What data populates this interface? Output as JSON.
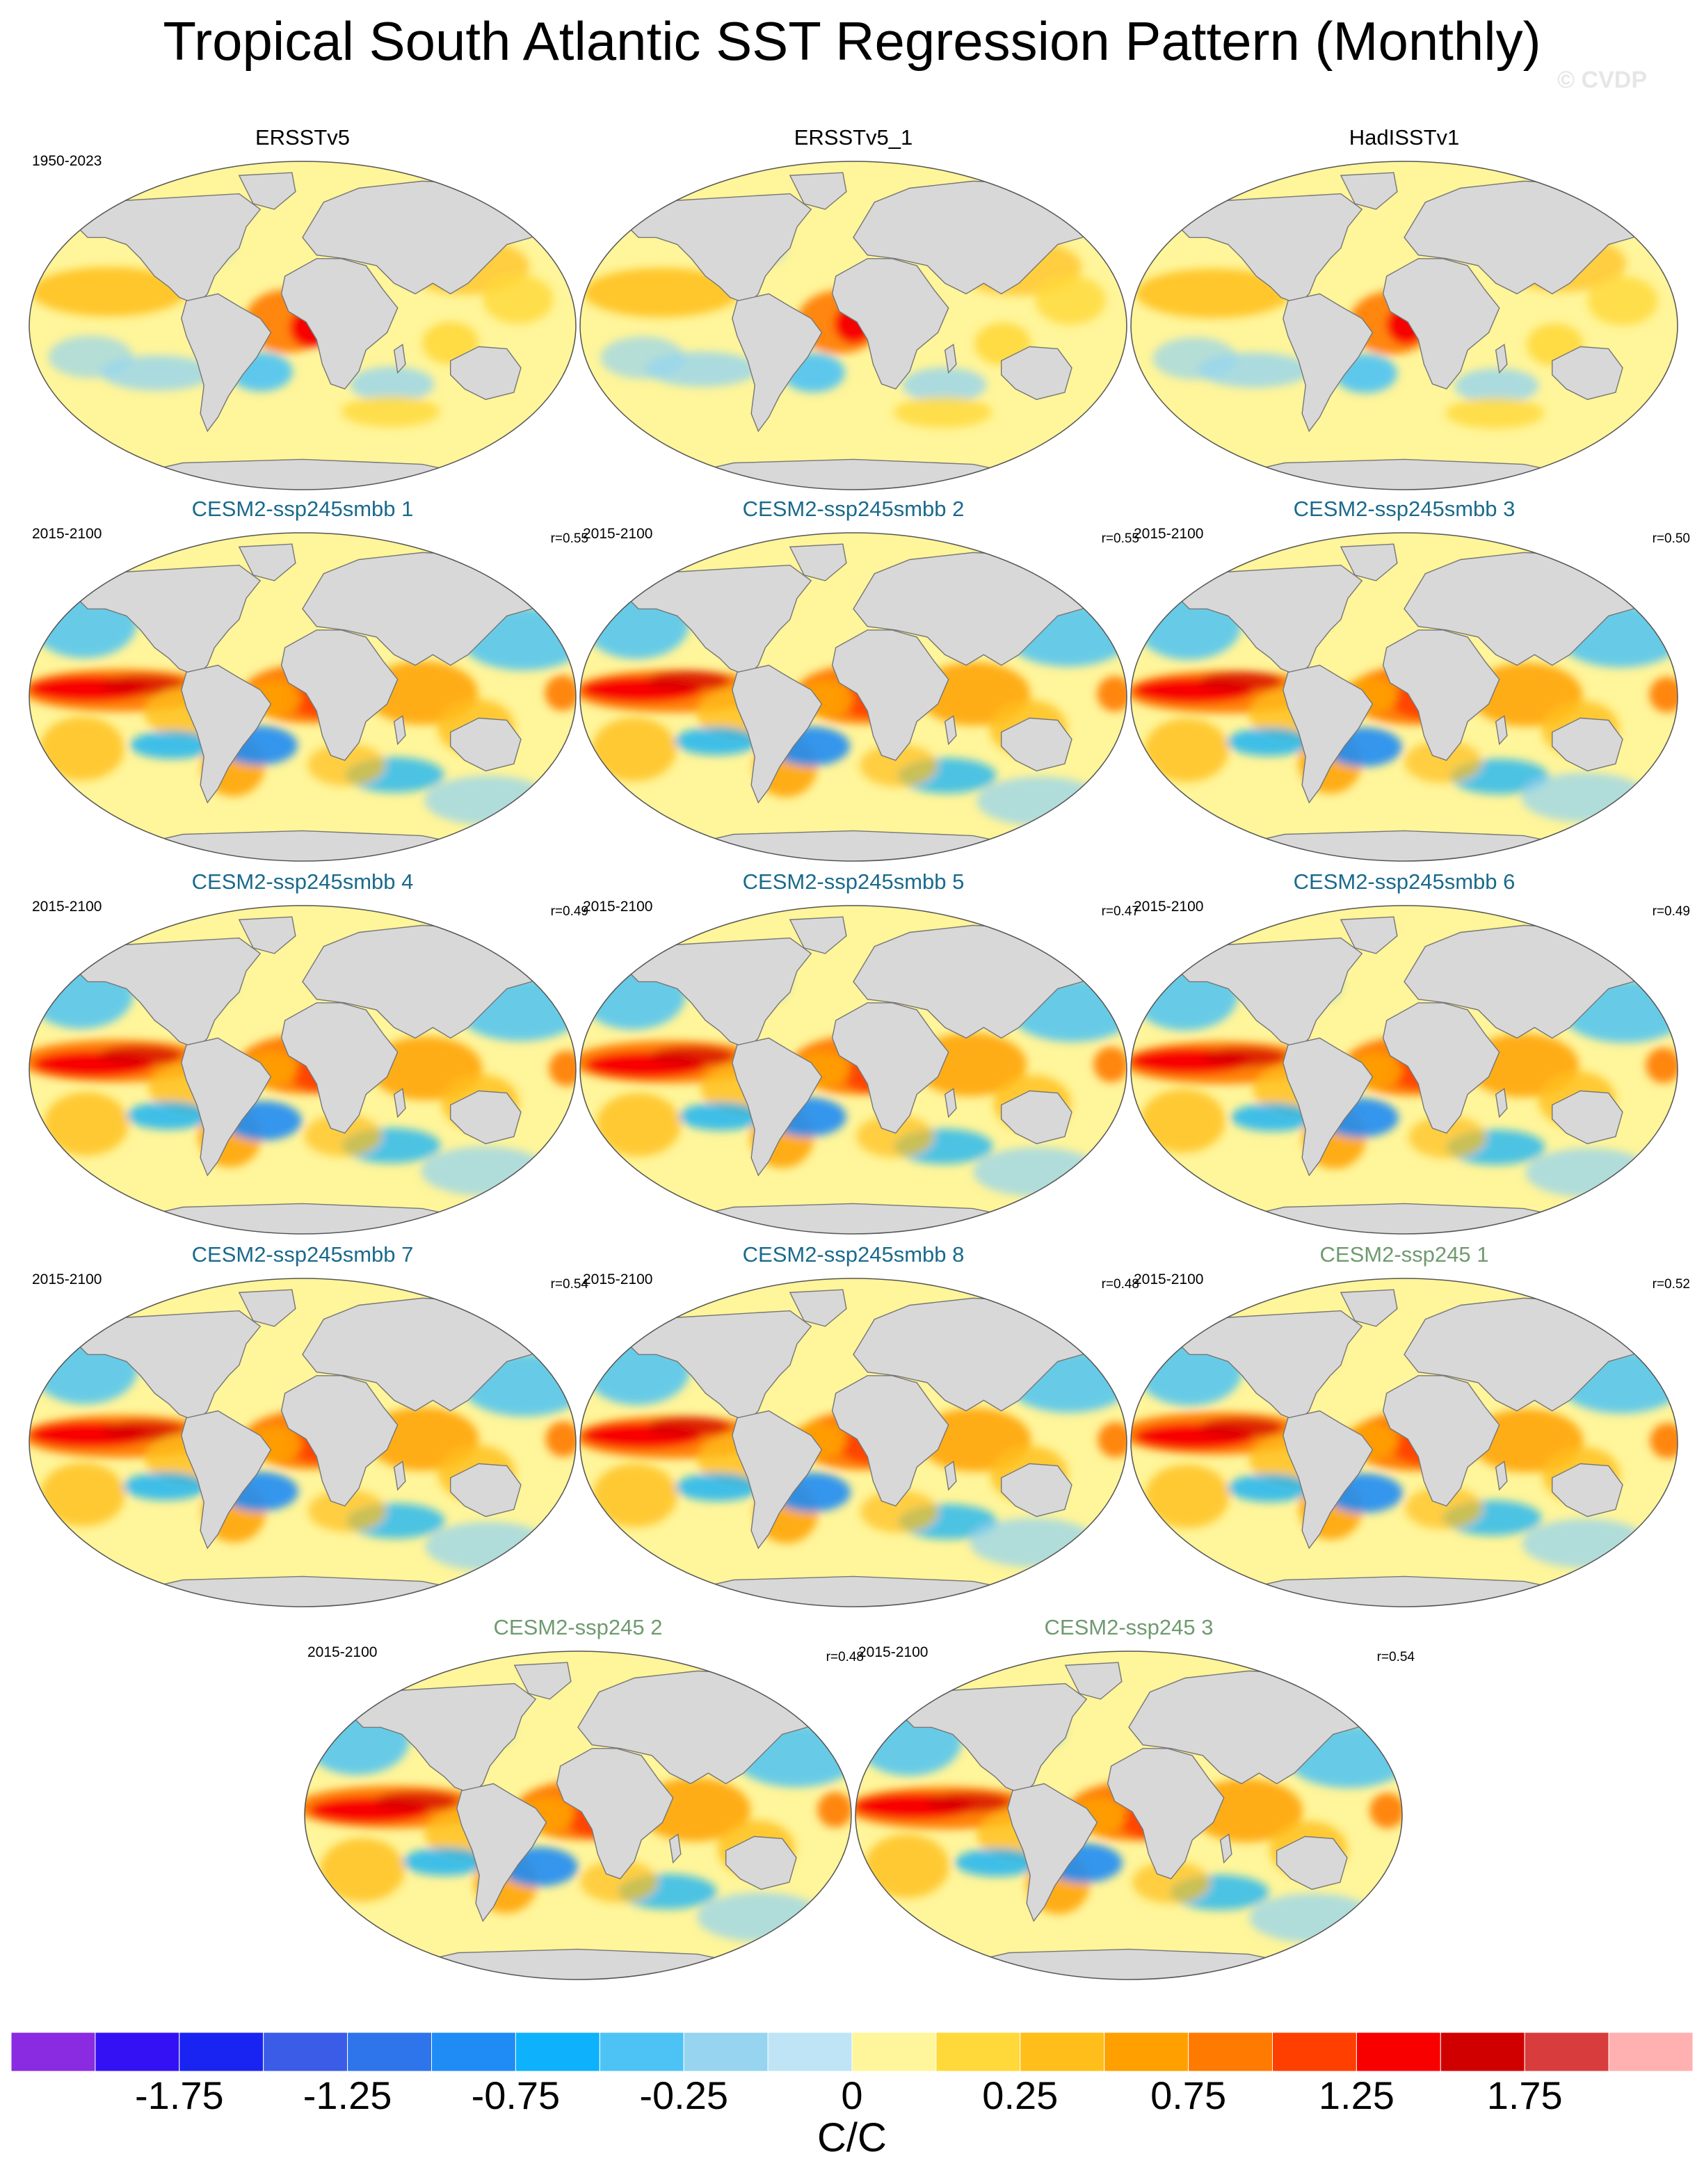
{
  "title": "Tropical South Atlantic SST Regression Pattern (Monthly)",
  "watermark": "© CVDP",
  "colors": {
    "ocean_base": "#fff59a",
    "land": "#d8d8d8",
    "coast": "#777777",
    "title_smbb": "#1a6a8c",
    "title_ssp": "#6f9a6f"
  },
  "panels": [
    {
      "title": "ERSSTv5",
      "period": "1950-2023",
      "corr": "",
      "kind": "obs"
    },
    {
      "title": "ERSSTv5_1",
      "period": "",
      "corr": "",
      "kind": "obs"
    },
    {
      "title": "HadISSTv1",
      "period": "",
      "corr": "",
      "kind": "obs"
    },
    {
      "title": "CESM2-ssp245smbb 1",
      "period": "2015-2100",
      "corr": "r=0.55",
      "kind": "smbb"
    },
    {
      "title": "CESM2-ssp245smbb 2",
      "period": "2015-2100",
      "corr": "r=0.55",
      "kind": "smbb"
    },
    {
      "title": "CESM2-ssp245smbb 3",
      "period": "2015-2100",
      "corr": "r=0.50",
      "kind": "smbb"
    },
    {
      "title": "CESM2-ssp245smbb 4",
      "period": "2015-2100",
      "corr": "r=0.49",
      "kind": "smbb"
    },
    {
      "title": "CESM2-ssp245smbb 5",
      "period": "2015-2100",
      "corr": "r=0.47",
      "kind": "smbb"
    },
    {
      "title": "CESM2-ssp245smbb 6",
      "period": "2015-2100",
      "corr": "r=0.49",
      "kind": "smbb"
    },
    {
      "title": "CESM2-ssp245smbb 7",
      "period": "2015-2100",
      "corr": "r=0.54",
      "kind": "smbb"
    },
    {
      "title": "CESM2-ssp245smbb 8",
      "period": "2015-2100",
      "corr": "r=0.48",
      "kind": "smbb"
    },
    {
      "title": "CESM2-ssp245 1",
      "period": "2015-2100",
      "corr": "r=0.52",
      "kind": "ssp"
    },
    {
      "title": "CESM2-ssp245 2",
      "period": "2015-2100",
      "corr": "r=0.48",
      "kind": "ssp"
    },
    {
      "title": "CESM2-ssp245 3",
      "period": "2015-2100",
      "corr": "r=0.54",
      "kind": "ssp"
    }
  ],
  "colorbar": {
    "colors": [
      "#8a2be2",
      "#3411f5",
      "#1a24f2",
      "#3a5ce6",
      "#2e74ea",
      "#1f8cf5",
      "#0eb1fb",
      "#4dc3f5",
      "#96d4ef",
      "#bfe4f5",
      "#fff59a",
      "#ffd83a",
      "#ffbe1a",
      "#ffa000",
      "#ff7a00",
      "#ff3f00",
      "#f80000",
      "#d00000",
      "#d83c3c",
      "#ffb0b0"
    ],
    "labels": [
      "-1.75",
      "-1.25",
      "-0.75",
      "-0.25",
      "0",
      "0.25",
      "0.75",
      "1.25",
      "1.75"
    ],
    "units": "C/C"
  }
}
